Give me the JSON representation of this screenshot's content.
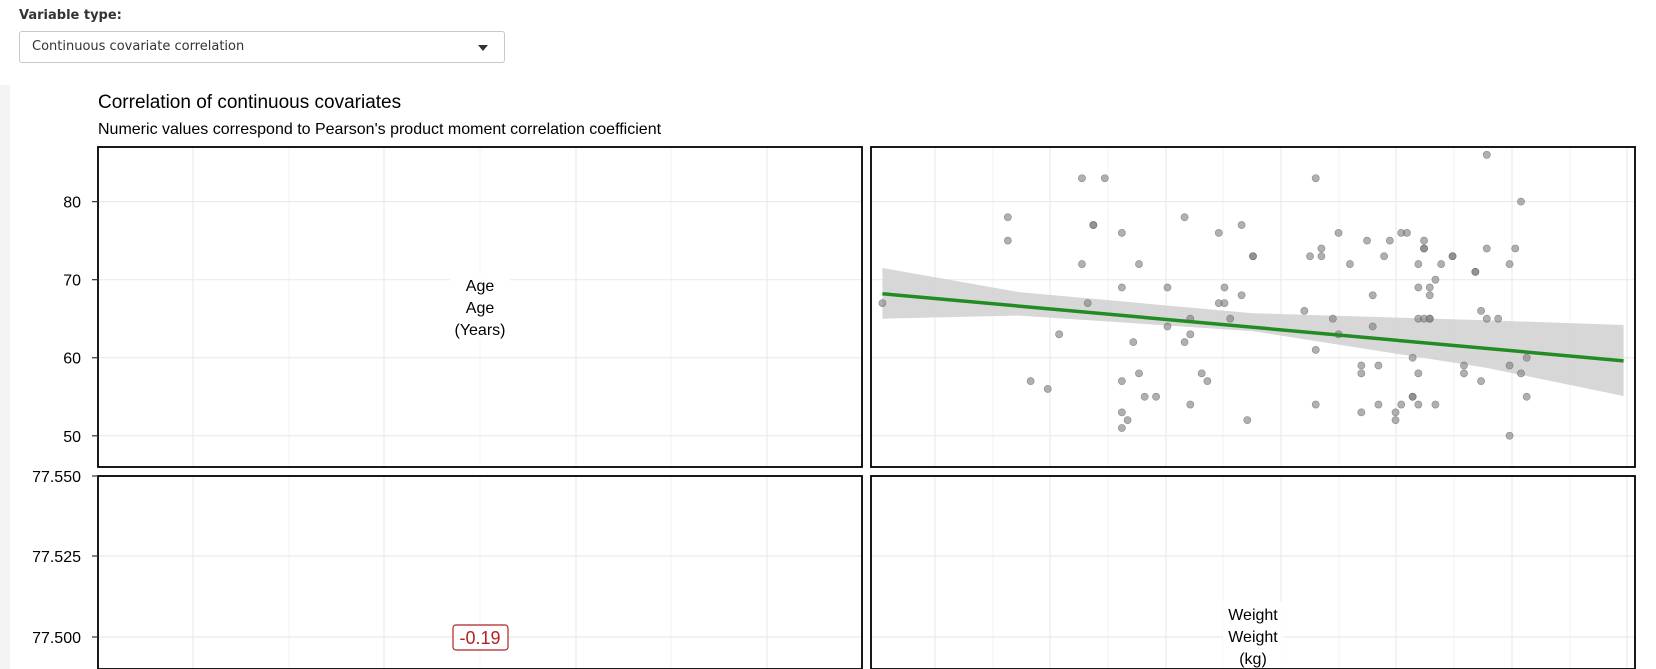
{
  "controls": {
    "variable_type_label": "Variable type:",
    "variable_type_value": "Continuous covariate correlation"
  },
  "colors": {
    "fit_line": "#228b22",
    "confidence_band": "#d3d3d3",
    "points": "#7f7f7f",
    "correlation_text": "#b22222",
    "grid": "#ebebeb"
  },
  "chart_data": {
    "type": "scatter",
    "title": "Correlation of continuous covariates",
    "subtitle": "Numeric values correspond to Pearson's product moment correlation coefficient",
    "diagonal_labels": {
      "age": [
        "Age",
        "Age",
        "(Years)"
      ],
      "weight": [
        "Weight",
        "Weight",
        "(kg)"
      ]
    },
    "correlation_label": "-0.19",
    "age_axis": {
      "ticks": [
        "80",
        "70",
        "60",
        "50"
      ],
      "range": [
        46,
        87
      ]
    },
    "lower_axis": {
      "ticks": [
        "77.550",
        "77.525",
        "77.500"
      ]
    },
    "weight_range": [
      40,
      107
    ],
    "fit_line": {
      "x": [
        41,
        106
      ],
      "y": [
        68.2,
        59.6
      ]
    },
    "confidence_band": {
      "x": [
        41,
        53,
        73.5,
        94,
        106
      ],
      "upper": [
        71.5,
        68.4,
        65.7,
        64.8,
        64.2
      ],
      "lower": [
        65.0,
        65.4,
        63.4,
        58.7,
        55.1
      ]
    },
    "points": [
      [
        41,
        67
      ],
      [
        52,
        75
      ],
      [
        52,
        78
      ],
      [
        54,
        57
      ],
      [
        55.5,
        56
      ],
      [
        56.5,
        63
      ],
      [
        58.5,
        72
      ],
      [
        58.5,
        83
      ],
      [
        60.5,
        83
      ],
      [
        59,
        67
      ],
      [
        59.5,
        77
      ],
      [
        59.5,
        77
      ],
      [
        62,
        69
      ],
      [
        62,
        76
      ],
      [
        62,
        57
      ],
      [
        62,
        53
      ],
      [
        62,
        51
      ],
      [
        62.5,
        52
      ],
      [
        63,
        62
      ],
      [
        63.5,
        72
      ],
      [
        63.5,
        58
      ],
      [
        64,
        55
      ],
      [
        65,
        55
      ],
      [
        66,
        64
      ],
      [
        66,
        69
      ],
      [
        67.5,
        62
      ],
      [
        67.5,
        78
      ],
      [
        68,
        63
      ],
      [
        68,
        65
      ],
      [
        68,
        54
      ],
      [
        69,
        58
      ],
      [
        69.5,
        57
      ],
      [
        70.5,
        67
      ],
      [
        71,
        67
      ],
      [
        70.5,
        76
      ],
      [
        71,
        69
      ],
      [
        71.5,
        65
      ],
      [
        72.5,
        77
      ],
      [
        72.5,
        68
      ],
      [
        73,
        52
      ],
      [
        73.5,
        73
      ],
      [
        73.5,
        73
      ],
      [
        78,
        66
      ],
      [
        78.5,
        73
      ],
      [
        79,
        83
      ],
      [
        79,
        61
      ],
      [
        79,
        54
      ],
      [
        79.5,
        74
      ],
      [
        79.5,
        73
      ],
      [
        80.5,
        65
      ],
      [
        81,
        76
      ],
      [
        81,
        63
      ],
      [
        82,
        72
      ],
      [
        83,
        59
      ],
      [
        83,
        58
      ],
      [
        83,
        53
      ],
      [
        83.5,
        75
      ],
      [
        84,
        64
      ],
      [
        84,
        68
      ],
      [
        84.5,
        59
      ],
      [
        84.5,
        54
      ],
      [
        85,
        73
      ],
      [
        85.5,
        75
      ],
      [
        86,
        52
      ],
      [
        86,
        53
      ],
      [
        86.5,
        76
      ],
      [
        86.5,
        54
      ],
      [
        87,
        76
      ],
      [
        87.5,
        60
      ],
      [
        87.5,
        55
      ],
      [
        87.5,
        55
      ],
      [
        88,
        65
      ],
      [
        88,
        58
      ],
      [
        88,
        54
      ],
      [
        88,
        69
      ],
      [
        88,
        72
      ],
      [
        88.5,
        74
      ],
      [
        88.5,
        65
      ],
      [
        88.5,
        75
      ],
      [
        88.5,
        74
      ],
      [
        89,
        69
      ],
      [
        89,
        68
      ],
      [
        89,
        65
      ],
      [
        89,
        65
      ],
      [
        89.5,
        54
      ],
      [
        89.5,
        70
      ],
      [
        90,
        72
      ],
      [
        91,
        73
      ],
      [
        91,
        73
      ],
      [
        92,
        59
      ],
      [
        92,
        58
      ],
      [
        93,
        71
      ],
      [
        93,
        71
      ],
      [
        93.5,
        57
      ],
      [
        93.5,
        66
      ],
      [
        94,
        65
      ],
      [
        94,
        74
      ],
      [
        94,
        86
      ],
      [
        95,
        65
      ],
      [
        96,
        59
      ],
      [
        96,
        50
      ],
      [
        96,
        72
      ],
      [
        96.5,
        74
      ],
      [
        97,
        58
      ],
      [
        97,
        80
      ],
      [
        97.5,
        55
      ],
      [
        97.5,
        60
      ]
    ]
  }
}
